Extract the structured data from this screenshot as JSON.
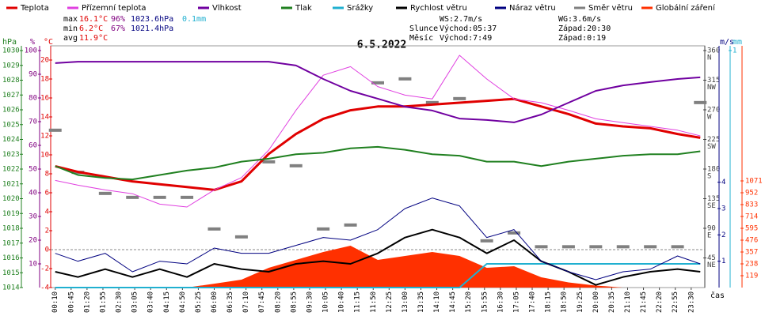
{
  "chart_data": {
    "type": "line",
    "title": "6.5.2022",
    "x_label": "čas",
    "x": [
      "00:10",
      "01:00",
      "02:00",
      "03:00",
      "04:00",
      "05:00",
      "06:00",
      "07:00",
      "08:00",
      "09:00",
      "10:00",
      "11:00",
      "12:00",
      "13:00",
      "14:00",
      "15:00",
      "16:00",
      "17:00",
      "18:00",
      "19:00",
      "20:00",
      "21:00",
      "22:00",
      "23:00",
      "23:50"
    ],
    "xticks": [
      "00:10",
      "00:45",
      "01:20",
      "01:55",
      "02:30",
      "03:05",
      "03:40",
      "04:15",
      "04:50",
      "05:25",
      "06:00",
      "06:35",
      "07:10",
      "07:45",
      "08:20",
      "08:55",
      "09:30",
      "10:05",
      "10:40",
      "11:15",
      "11:50",
      "12:25",
      "13:00",
      "13:35",
      "14:10",
      "14:45",
      "15:20",
      "15:55",
      "16:30",
      "17:05",
      "17:40",
      "18:15",
      "18:50",
      "19:25",
      "20:00",
      "20:35",
      "21:10",
      "21:45",
      "22:20",
      "22:55",
      "23:30"
    ],
    "axes": [
      {
        "name": "hPa",
        "color": "#208020",
        "ylim": [
          1014,
          1030
        ],
        "yticks": [
          1014,
          1015,
          1016,
          1017,
          1018,
          1019,
          1020,
          1021,
          1022,
          1023,
          1024,
          1025,
          1026,
          1027,
          1028,
          1029,
          1030
        ]
      },
      {
        "name": "%",
        "color": "#800080",
        "ylim": [
          0,
          100
        ],
        "yticks": [
          10,
          20,
          30,
          40,
          50,
          60,
          70,
          80,
          90,
          100
        ]
      },
      {
        "name": "°C",
        "color": "#e00000",
        "ylim": [
          -4,
          21
        ],
        "yticks": [
          -4,
          -2,
          0,
          2,
          4,
          6,
          8,
          10,
          12,
          14,
          16,
          18,
          20
        ]
      },
      {
        "ylim": [
          0,
          360
        ],
        "color": "#404040",
        "yticks": [
          45,
          90,
          135,
          180,
          225,
          270,
          315,
          360
        ],
        "tick_names": [
          "NE",
          "E",
          "SE",
          "S",
          "SW",
          "W",
          "NW",
          "N"
        ]
      },
      {
        "name": "m/s",
        "color": "#000080",
        "ylim": [
          0,
          9
        ],
        "yticks": [
          1,
          2,
          3,
          4
        ]
      },
      {
        "name": "mm",
        "color": "#20b0d0",
        "ylim": [
          0,
          1
        ],
        "yticks": [
          1
        ]
      },
      {
        "color": "#ff3000",
        "ylim": [
          0,
          2380
        ],
        "yticks": [
          119,
          238,
          357,
          476,
          595,
          714,
          833,
          952,
          1071
        ]
      }
    ],
    "series": [
      {
        "name": "Teplota",
        "color": "#e00000",
        "axis": 2,
        "mark": "line",
        "width": 3,
        "values": [
          8.8,
          8.2,
          7.7,
          7.2,
          6.9,
          6.6,
          6.3,
          7.2,
          10.1,
          12.2,
          13.8,
          14.7,
          15.1,
          15.1,
          15.3,
          15.5,
          15.7,
          15.9,
          15.1,
          14.3,
          13.3,
          13.0,
          12.8,
          12.2,
          11.8
        ]
      },
      {
        "name": "Přízemní teplota",
        "color": "#e040e0",
        "axis": 2,
        "mark": "line",
        "width": 1,
        "values": [
          7.3,
          6.8,
          6.3,
          5.9,
          4.8,
          4.5,
          6.3,
          7.6,
          10.5,
          14.7,
          18.4,
          19.3,
          17.2,
          16.3,
          15.9,
          20.5,
          18.0,
          15.9,
          15.5,
          14.7,
          13.8,
          13.4,
          13.0,
          12.6,
          12.0
        ]
      },
      {
        "name": "Vlhkost",
        "color": "#7000a0",
        "axis": 1,
        "mark": "line",
        "width": 2,
        "values": [
          94.7,
          95.3,
          95.3,
          95.3,
          95.3,
          95.3,
          95.3,
          95.3,
          95.3,
          93.7,
          88,
          83,
          79.7,
          76.3,
          74.7,
          71.3,
          70.7,
          69.7,
          73,
          78,
          83,
          85.3,
          86.7,
          88,
          88.7
        ]
      },
      {
        "name": "Tlak",
        "color": "#208020",
        "axis": 0,
        "mark": "line",
        "width": 2,
        "values": [
          1022.2,
          1021.6,
          1021.4,
          1021.3,
          1021.6,
          1021.9,
          1022.1,
          1022.5,
          1022.7,
          1023.0,
          1023.1,
          1023.4,
          1023.5,
          1023.3,
          1023.0,
          1022.9,
          1022.5,
          1022.5,
          1022.2,
          1022.5,
          1022.7,
          1022.9,
          1023.0,
          1023.0,
          1023.2
        ]
      },
      {
        "name": "Srážky",
        "color": "#20b0d0",
        "axis": 5,
        "mark": "line",
        "width": 2,
        "values": [
          0,
          0,
          0,
          0,
          0,
          0,
          0,
          0,
          0,
          0,
          0,
          0,
          0,
          0,
          0,
          0,
          0.1,
          0.1,
          0.1,
          0.1,
          0.1,
          0.1,
          0.1,
          0.1,
          0.1
        ]
      },
      {
        "name": "Rychlost větru",
        "color": "#000000",
        "axis": 4,
        "mark": "line",
        "width": 2,
        "values": [
          0.6,
          0.4,
          0.7,
          0.4,
          0.7,
          0.4,
          0.9,
          0.7,
          0.6,
          0.9,
          1.0,
          0.9,
          1.3,
          1.9,
          2.2,
          1.9,
          1.3,
          1.8,
          1.0,
          0.6,
          0.1,
          0.4,
          0.6,
          0.7,
          0.6
        ]
      },
      {
        "name": "Náraz větru",
        "color": "#000080",
        "axis": 4,
        "mark": "line",
        "width": 1,
        "values": [
          1.3,
          1.0,
          1.3,
          0.6,
          1.0,
          0.9,
          1.5,
          1.3,
          1.3,
          1.6,
          1.9,
          1.8,
          2.2,
          3.0,
          3.4,
          3.1,
          1.9,
          2.2,
          1.0,
          0.6,
          0.3,
          0.6,
          0.7,
          1.2,
          0.9
        ]
      },
      {
        "name": "Směr větru",
        "color": "#808080",
        "axis": 3,
        "mark": "square",
        "values": [
          239,
          175,
          143,
          137,
          137,
          137,
          89,
          77,
          191,
          185,
          89,
          95,
          311,
          317,
          281,
          287,
          71,
          83,
          62,
          62,
          62,
          62,
          62,
          62,
          281
        ]
      },
      {
        "name": "Globální záření",
        "color": "#ff3000",
        "axis": 6,
        "mark": "area",
        "values": [
          0,
          0,
          0,
          0,
          0,
          0,
          39,
          79,
          198,
          278,
          357,
          420,
          278,
          317,
          357,
          317,
          198,
          214,
          103,
          52,
          20,
          0,
          0,
          0,
          0
        ]
      }
    ],
    "stats": [
      {
        "label": "max",
        "values": [
          "16.1°C",
          "96%",
          "1023.6hPa",
          "0.1mm"
        ]
      },
      {
        "label": "min",
        "values": [
          "6.2°C",
          "67%",
          "1021.4hPa"
        ]
      },
      {
        "label": "avg",
        "values": [
          "11.9°C"
        ]
      }
    ],
    "info": {
      "ws": "WS:2.7m/s",
      "wg": "WG:3.6m/s",
      "sun": {
        "label": "Slunce",
        "rise": "Východ:05:37",
        "set": "Západ:20:30"
      },
      "moon": {
        "label": "Měsíc",
        "rise": "Východ:7:49",
        "set": "Západ:0:19"
      }
    }
  }
}
